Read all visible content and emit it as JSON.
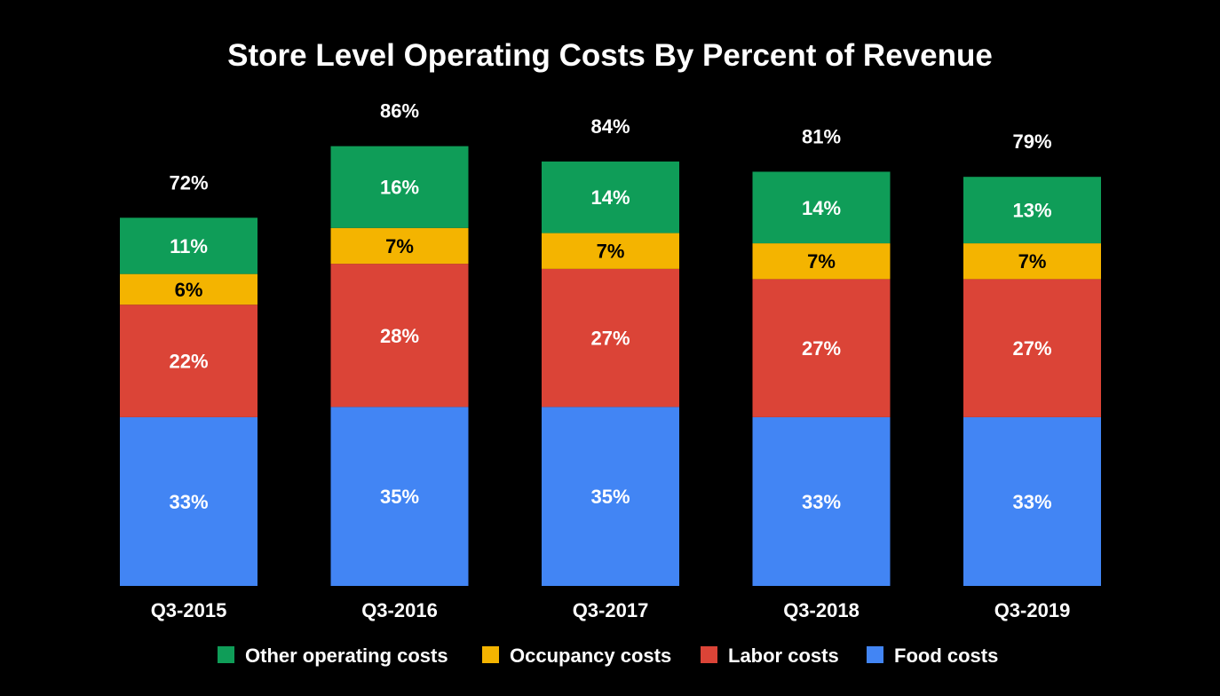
{
  "chart_data": {
    "type": "bar",
    "stacked": true,
    "title": "Store Level Operating Costs By Percent of Revenue",
    "xlabel": "",
    "ylabel": "",
    "ylim": [
      0,
      90
    ],
    "grid": false,
    "legend_position": "bottom",
    "categories": [
      "Q3-2015",
      "Q3-2016",
      "Q3-2017",
      "Q3-2018",
      "Q3-2019"
    ],
    "totals": [
      "72%",
      "86%",
      "84%",
      "81%",
      "79%"
    ],
    "series": [
      {
        "name": "Food costs",
        "color": "#4285f4",
        "values": [
          33,
          35,
          35,
          33,
          33
        ]
      },
      {
        "name": "Labor costs",
        "color": "#db4437",
        "values": [
          22,
          28,
          27,
          27,
          27
        ]
      },
      {
        "name": "Occupancy costs",
        "color": "#f4b400",
        "values": [
          6,
          7,
          7,
          7,
          7
        ]
      },
      {
        "name": "Other operating costs",
        "color": "#0f9d58",
        "values": [
          11,
          16,
          14,
          14,
          13
        ]
      }
    ],
    "legend_order": [
      "Other operating costs",
      "Occupancy costs",
      "Labor costs",
      "Food costs"
    ]
  }
}
